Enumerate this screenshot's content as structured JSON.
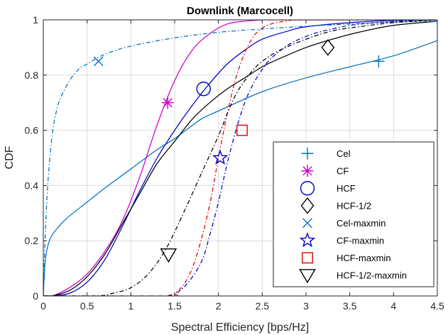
{
  "chart_data": {
    "type": "line",
    "title": "Downlink (Marcocell)",
    "xlabel": "Spectral Efficiency [bps/Hz]",
    "ylabel": "CDF",
    "xlim": [
      0,
      4.5
    ],
    "ylim": [
      0,
      1
    ],
    "x_ticks": [
      "0",
      "0.5",
      "1",
      "1.5",
      "2",
      "2.5",
      "3",
      "3.5",
      "4",
      "4.5"
    ],
    "y_ticks": [
      "0",
      "0.2",
      "0.4",
      "0.6",
      "0.8",
      "1"
    ],
    "grid": true,
    "legend_position": "bottom-right",
    "series": [
      {
        "name": "Cel",
        "color": "#0072BD",
        "line": "solid",
        "marker": "plus",
        "marker_at": [
          3.83,
          0.85
        ],
        "x": [
          0,
          0.02,
          0.05,
          0.1,
          0.2,
          0.3,
          0.5,
          0.7,
          1.0,
          1.3,
          1.5,
          1.8,
          2.0,
          2.5,
          3.0,
          3.5,
          4.0,
          4.5
        ],
        "y": [
          0,
          0.12,
          0.18,
          0.22,
          0.26,
          0.29,
          0.34,
          0.39,
          0.46,
          0.53,
          0.57,
          0.64,
          0.67,
          0.74,
          0.79,
          0.83,
          0.87,
          0.925
        ]
      },
      {
        "name": "CF",
        "color": "#CC00CC",
        "line": "solid",
        "marker": "asterisk",
        "marker_at": [
          1.42,
          0.7
        ],
        "x": [
          0,
          0.1,
          0.3,
          0.5,
          0.7,
          0.9,
          1.1,
          1.3,
          1.5,
          1.7,
          1.9,
          2.1,
          2.3,
          2.5,
          2.7,
          3.0
        ],
        "y": [
          0,
          0.0,
          0.03,
          0.08,
          0.16,
          0.27,
          0.43,
          0.62,
          0.78,
          0.89,
          0.95,
          0.985,
          0.995,
          1.0,
          1.0,
          1.0
        ]
      },
      {
        "name": "HCF",
        "color": "#0000CC",
        "line": "solid",
        "marker": "circle",
        "marker_at": [
          1.83,
          0.75
        ],
        "x": [
          0,
          0.1,
          0.3,
          0.5,
          0.7,
          0.9,
          1.1,
          1.3,
          1.5,
          1.7,
          1.9,
          2.1,
          2.3,
          2.5,
          2.8,
          3.0,
          3.5,
          4.0,
          4.5
        ],
        "y": [
          0,
          0.0,
          0.01,
          0.05,
          0.13,
          0.25,
          0.38,
          0.5,
          0.6,
          0.69,
          0.77,
          0.84,
          0.89,
          0.93,
          0.96,
          0.975,
          0.99,
          0.998,
          1.0
        ]
      },
      {
        "name": "HCF-1/2",
        "color": "#000000",
        "line": "solid",
        "marker": "diamond",
        "marker_at": [
          3.25,
          0.9
        ],
        "x": [
          0,
          0.1,
          0.3,
          0.5,
          0.7,
          0.9,
          1.1,
          1.3,
          1.5,
          1.7,
          1.9,
          2.1,
          2.3,
          2.5,
          2.7,
          3.0,
          3.3,
          3.6,
          4.0,
          4.5
        ],
        "y": [
          0,
          0.0,
          0.02,
          0.07,
          0.15,
          0.26,
          0.37,
          0.48,
          0.56,
          0.64,
          0.7,
          0.75,
          0.79,
          0.83,
          0.86,
          0.9,
          0.93,
          0.955,
          0.98,
          0.995
        ]
      },
      {
        "name": "Cel-maxmin",
        "color": "#0072BD",
        "line": "dashdot",
        "marker": "cross",
        "marker_at": [
          0.63,
          0.85
        ],
        "x": [
          0,
          0.02,
          0.05,
          0.1,
          0.15,
          0.2,
          0.3,
          0.4,
          0.5,
          0.7,
          1.0,
          1.5,
          2.0,
          2.5,
          3.0,
          3.5,
          4.0,
          4.5
        ],
        "y": [
          0,
          0.2,
          0.4,
          0.58,
          0.67,
          0.72,
          0.78,
          0.82,
          0.84,
          0.875,
          0.905,
          0.935,
          0.955,
          0.967,
          0.977,
          0.985,
          0.992,
          0.995
        ]
      },
      {
        "name": "CF-maxmin",
        "color": "#0000CC",
        "line": "dashdot",
        "marker": "pentagram",
        "marker_at": [
          2.02,
          0.5
        ],
        "x": [
          1.0,
          1.4,
          1.6,
          1.8,
          1.9,
          2.0,
          2.1,
          2.2,
          2.3,
          2.4,
          2.5,
          2.6,
          2.8,
          3.0,
          3.2,
          3.5,
          3.8,
          4.2,
          4.5
        ],
        "y": [
          0,
          0.0,
          0.03,
          0.12,
          0.22,
          0.34,
          0.48,
          0.6,
          0.7,
          0.77,
          0.82,
          0.86,
          0.91,
          0.94,
          0.96,
          0.98,
          0.99,
          0.997,
          1.0
        ]
      },
      {
        "name": "HCF-maxmin",
        "color": "#E00000",
        "line": "dashdot",
        "marker": "square",
        "marker_at": [
          2.27,
          0.6
        ],
        "x": [
          1.4,
          1.5,
          1.6,
          1.7,
          1.8,
          1.9,
          2.0,
          2.1,
          2.2,
          2.3,
          2.4,
          2.5,
          2.6,
          2.8,
          3.0
        ],
        "y": [
          0,
          0.01,
          0.04,
          0.1,
          0.2,
          0.33,
          0.5,
          0.66,
          0.79,
          0.88,
          0.94,
          0.97,
          0.985,
          0.997,
          1.0
        ]
      },
      {
        "name": "HCF-1/2-maxmin",
        "color": "#000000",
        "line": "dashdot",
        "marker": "triangle-down",
        "marker_at": [
          1.43,
          0.15
        ],
        "x": [
          0.6,
          0.8,
          1.0,
          1.2,
          1.4,
          1.6,
          1.8,
          2.0,
          2.1,
          2.2,
          2.3,
          2.4,
          2.5,
          2.7,
          3.0,
          3.3,
          3.6,
          4.0,
          4.5
        ],
        "y": [
          0,
          0.01,
          0.03,
          0.08,
          0.17,
          0.3,
          0.44,
          0.58,
          0.66,
          0.73,
          0.78,
          0.82,
          0.85,
          0.89,
          0.93,
          0.96,
          0.975,
          0.99,
          1.0
        ]
      }
    ]
  }
}
